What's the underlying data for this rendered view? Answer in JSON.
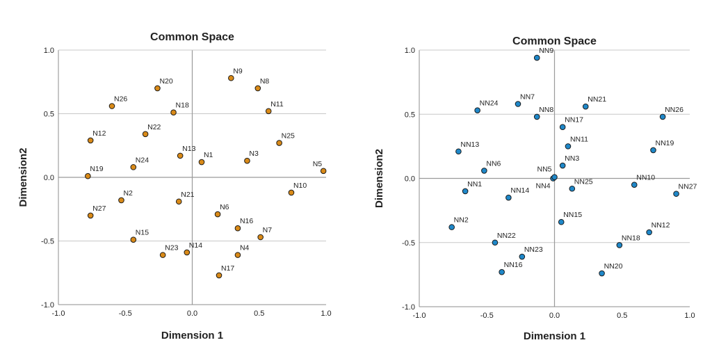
{
  "chart_data": [
    {
      "type": "scatter",
      "title": "Common Space",
      "xlabel": "Dimension 1",
      "ylabel": "Dimension2",
      "xlim": [
        -1.0,
        1.0
      ],
      "ylim": [
        -1.0,
        1.0
      ],
      "xticks": [
        "-1.0",
        "-0.5",
        "0.0",
        "0.5",
        "1.0"
      ],
      "yticks": [
        "1.0",
        "0.5",
        "0.0",
        "-0.5",
        "-1.0"
      ],
      "grid": "horizontal",
      "marker_color": "#d98a18",
      "points": [
        {
          "label": "N1",
          "x": 0.07,
          "y": 0.12
        },
        {
          "label": "N2",
          "x": -0.53,
          "y": -0.18
        },
        {
          "label": "N3",
          "x": 0.41,
          "y": 0.13
        },
        {
          "label": "N4",
          "x": 0.34,
          "y": -0.61
        },
        {
          "label": "N5",
          "x": 0.98,
          "y": 0.05
        },
        {
          "label": "N6",
          "x": 0.19,
          "y": -0.29
        },
        {
          "label": "N7",
          "x": 0.51,
          "y": -0.47
        },
        {
          "label": "N8",
          "x": 0.49,
          "y": 0.7
        },
        {
          "label": "N9",
          "x": 0.29,
          "y": 0.78
        },
        {
          "label": "N10",
          "x": 0.74,
          "y": -0.12
        },
        {
          "label": "N11",
          "x": 0.57,
          "y": 0.52
        },
        {
          "label": "N12",
          "x": -0.76,
          "y": 0.29
        },
        {
          "label": "N13",
          "x": -0.09,
          "y": 0.17
        },
        {
          "label": "N14",
          "x": -0.04,
          "y": -0.59
        },
        {
          "label": "N15",
          "x": -0.44,
          "y": -0.49
        },
        {
          "label": "N16",
          "x": 0.34,
          "y": -0.4
        },
        {
          "label": "N17",
          "x": 0.2,
          "y": -0.77
        },
        {
          "label": "N18",
          "x": -0.14,
          "y": 0.51
        },
        {
          "label": "N19",
          "x": -0.78,
          "y": 0.01
        },
        {
          "label": "N20",
          "x": -0.26,
          "y": 0.7
        },
        {
          "label": "N21",
          "x": -0.1,
          "y": -0.19
        },
        {
          "label": "N22",
          "x": -0.35,
          "y": 0.34
        },
        {
          "label": "N23",
          "x": -0.22,
          "y": -0.61
        },
        {
          "label": "N24",
          "x": -0.44,
          "y": 0.08
        },
        {
          "label": "N25",
          "x": 0.65,
          "y": 0.27
        },
        {
          "label": "N26",
          "x": -0.6,
          "y": 0.56
        },
        {
          "label": "N27",
          "x": -0.76,
          "y": -0.3
        }
      ]
    },
    {
      "type": "scatter",
      "title": "Common Space",
      "xlabel": "Dimension 1",
      "ylabel": "Dimension2",
      "xlim": [
        -1.0,
        1.0
      ],
      "ylim": [
        -1.0,
        1.0
      ],
      "xticks": [
        "-1.0",
        "-0.5",
        "0.0",
        "0.5",
        "1.0"
      ],
      "yticks": [
        "1.0",
        "0.5",
        "0.0",
        "-0.5",
        "-1.0"
      ],
      "grid": "horizontal",
      "marker_color": "#1f88c9",
      "points": [
        {
          "label": "NN1",
          "x": -0.66,
          "y": -0.1
        },
        {
          "label": "NN2",
          "x": -0.76,
          "y": -0.38
        },
        {
          "label": "NN3",
          "x": 0.06,
          "y": 0.1
        },
        {
          "label": "NN4",
          "x": -0.01,
          "y": 0.0
        },
        {
          "label": "NN5",
          "x": 0.0,
          "y": 0.01
        },
        {
          "label": "NN6",
          "x": -0.52,
          "y": 0.06
        },
        {
          "label": "NN7",
          "x": -0.27,
          "y": 0.58
        },
        {
          "label": "NN8",
          "x": -0.13,
          "y": 0.48
        },
        {
          "label": "NN9",
          "x": -0.13,
          "y": 0.94
        },
        {
          "label": "NN10",
          "x": 0.59,
          "y": -0.05
        },
        {
          "label": "NN11",
          "x": 0.1,
          "y": 0.25
        },
        {
          "label": "NN12",
          "x": 0.7,
          "y": -0.42
        },
        {
          "label": "NN13",
          "x": -0.71,
          "y": 0.21
        },
        {
          "label": "NN14",
          "x": -0.34,
          "y": -0.15
        },
        {
          "label": "NN15",
          "x": 0.05,
          "y": -0.34
        },
        {
          "label": "NN16",
          "x": -0.39,
          "y": -0.73
        },
        {
          "label": "NN17",
          "x": 0.06,
          "y": 0.4
        },
        {
          "label": "NN18",
          "x": 0.48,
          "y": -0.52
        },
        {
          "label": "NN19",
          "x": 0.73,
          "y": 0.22
        },
        {
          "label": "NN20",
          "x": 0.35,
          "y": -0.74
        },
        {
          "label": "NN21",
          "x": 0.23,
          "y": 0.56
        },
        {
          "label": "NN22",
          "x": -0.44,
          "y": -0.5
        },
        {
          "label": "NN23",
          "x": -0.24,
          "y": -0.61
        },
        {
          "label": "NN24",
          "x": -0.57,
          "y": 0.53
        },
        {
          "label": "NN25",
          "x": 0.13,
          "y": -0.08
        },
        {
          "label": "NN26",
          "x": 0.8,
          "y": 0.48
        },
        {
          "label": "NN27",
          "x": 0.9,
          "y": -0.12
        }
      ]
    }
  ]
}
